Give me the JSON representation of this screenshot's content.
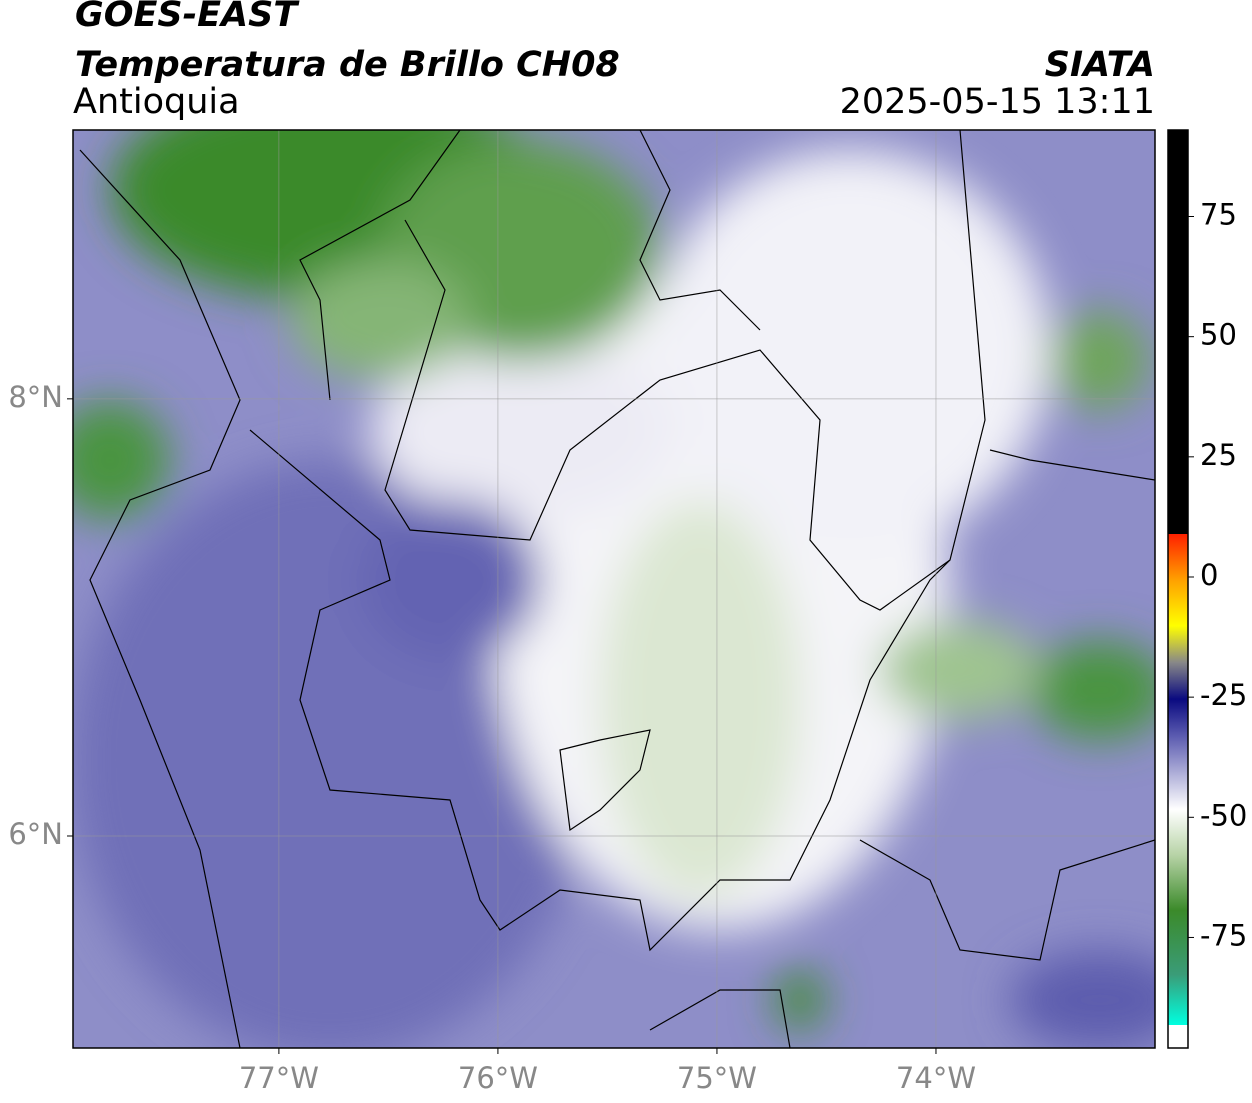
{
  "header": {
    "title": "GOES-EAST",
    "subtitle": "Temperatura de Brillo CH08",
    "region": "Antioquia",
    "source": "SIATA",
    "datetime": "2025-05-15 13:11"
  },
  "map": {
    "lonlim": [
      -77.94,
      -73.0
    ],
    "latlim": [
      5.03,
      9.23
    ],
    "grid": true,
    "lonticks": [
      {
        "value": -77,
        "label": "77°W"
      },
      {
        "value": -76,
        "label": "76°W"
      },
      {
        "value": -75,
        "label": "75°W"
      },
      {
        "value": -74,
        "label": "74°W"
      }
    ],
    "latticks": [
      {
        "value": 8,
        "label": "8°N"
      },
      {
        "value": 6,
        "label": "6°N"
      }
    ]
  },
  "colorbar": {
    "lim": [
      -98,
      93
    ],
    "ticks": [
      75,
      50,
      25,
      0,
      -25,
      -50,
      -75
    ]
  }
}
